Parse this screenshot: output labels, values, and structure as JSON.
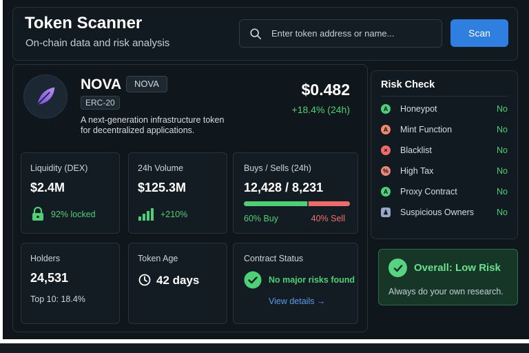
{
  "header": {
    "title": "Token Scanner",
    "subtitle": "On-chain data and risk analysis",
    "search_placeholder": "Enter token address or name...",
    "scan_label": "Scan"
  },
  "token": {
    "name": "NOVA",
    "symbol": "NOVA",
    "standard": "ERC-20",
    "description_line1": "A next-generation infrastructure token",
    "description_line2": "for decentralized applications.",
    "price": "$0.482",
    "change": "+18.4% (24h)",
    "logo_icon": "feather-leaf-icon"
  },
  "stats": {
    "liquidity": {
      "label": "Liquidity (DEX)",
      "value": "$2.4M",
      "sub": "92% locked",
      "icon": "lock-icon"
    },
    "volume": {
      "label": "24h Volume",
      "value": "$125.3M",
      "sub": "+210%",
      "icon": "bar-chart-icon"
    },
    "buys_sells": {
      "label": "Buys / Sells (24h)",
      "value": "12,428 / 8,231",
      "buy_label": "60% Buy",
      "sell_label": "40% Sell",
      "buy_fraction": 0.6
    },
    "holders": {
      "label": "Holders",
      "value": "24,531",
      "sub": "Top 10: 18.4%"
    },
    "age": {
      "label": "Token Age",
      "value": "42 days",
      "icon": "clock-icon"
    },
    "contract": {
      "label": "Contract Status",
      "status": "No major risks found",
      "link": "View details →",
      "icon": "check-circle-icon"
    }
  },
  "risk": {
    "title": "Risk Check",
    "items": [
      {
        "name": "Honeypot",
        "status": "No",
        "color": "#4fcf76",
        "icon": "honeypot-icon"
      },
      {
        "name": "Mint Function",
        "status": "No",
        "color": "#f08a6a",
        "icon": "mint-icon"
      },
      {
        "name": "Blacklist",
        "status": "No",
        "color": "#ef6b6b",
        "icon": "blacklist-icon"
      },
      {
        "name": "High Tax",
        "status": "No",
        "color": "#ef8a7a",
        "icon": "tax-icon"
      },
      {
        "name": "Proxy Contract",
        "status": "No",
        "color": "#4fcf76",
        "icon": "proxy-icon"
      },
      {
        "name": "Suspicious Owners",
        "status": "No",
        "color": "#9aa6c6",
        "icon": "owner-icon"
      }
    ]
  },
  "overall": {
    "title": "Overall: Low Risk",
    "subtitle": "Always do your own research."
  },
  "colors": {
    "accent": "#2f7fe0",
    "positive": "#4fcf76",
    "negative": "#ef6b6b",
    "background": "#0f171c"
  }
}
